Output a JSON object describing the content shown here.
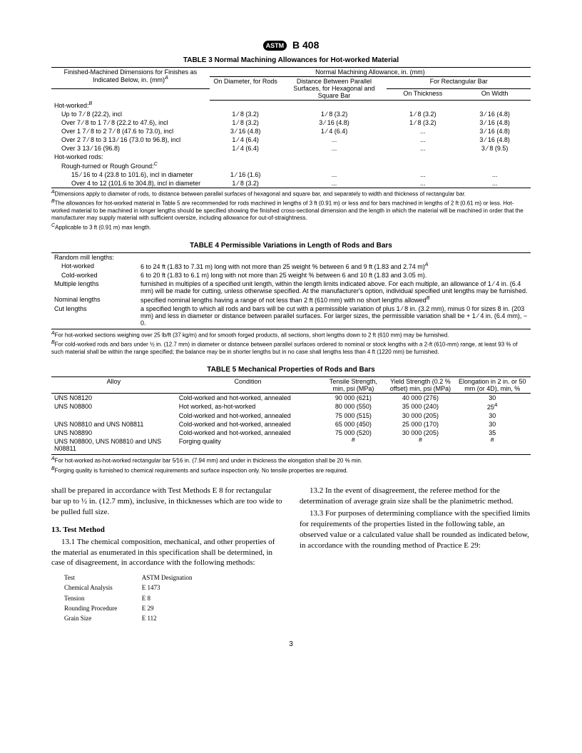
{
  "header": {
    "logo_text": "ASTM",
    "spec": "B 408"
  },
  "table3": {
    "title": "TABLE 3  Normal Machining Allowances for Hot-worked Material",
    "head_main": "Normal Machining Allowance, in. (mm)",
    "col_left": "Finished-Machined Dimensions for Finishes as Indicated Below, in. (mm)",
    "col_left_sup": "A",
    "col_diameter": "On Diameter, for Rods",
    "col_distance": "Distance Between Parallel Surfaces, for Hexagonal and Square Bar",
    "col_rect": "For Rectangular Bar",
    "col_thick": "On Thickness",
    "col_width": "On Width",
    "group1": "Hot-worked:",
    "group1_sup": "B",
    "rows1": [
      {
        "label": "Up to 7 ⁄ 8 (22.2), incl",
        "d": "1 ⁄ 8 (3.2)",
        "s": "1 ⁄ 8 (3.2)",
        "t": "1 ⁄ 8 (3.2)",
        "w": "3 ⁄ 16 (4.8)"
      },
      {
        "label": "Over 7 ⁄ 8 to 1 7 ⁄ 8 (22.2 to 47.6), incl",
        "d": "1 ⁄ 8 (3.2)",
        "s": "3 ⁄ 16 (4.8)",
        "t": "1 ⁄ 8 (3.2)",
        "w": "3 ⁄ 16 (4.8)"
      },
      {
        "label": "Over 1 7 ⁄ 8 to 2 7 ⁄ 8 (47.6 to 73.0), incl",
        "d": "3 ⁄ 16 (4.8)",
        "s": "1 ⁄ 4 (6.4)",
        "t": "...",
        "w": "3 ⁄ 16 (4.8)"
      },
      {
        "label": "Over 2 7 ⁄ 8 to 3 13 ⁄ 16 (73.0 to 96.8), incl",
        "d": "1 ⁄ 4 (6.4)",
        "s": "...",
        "t": "...",
        "w": "3 ⁄ 16 (4.8)"
      },
      {
        "label": "Over 3 13 ⁄ 16 (96.8)",
        "d": "1 ⁄ 4 (6.4)",
        "s": "...",
        "t": "...",
        "w": "3 ⁄ 8 (9.5)"
      }
    ],
    "group2a": "Hot-worked rods:",
    "group2b": "Rough-turned or Rough Ground:",
    "group2b_sup": "C",
    "rows2": [
      {
        "label": "15 ⁄ 16 to 4 (23.8 to 101.6), incl in diameter",
        "d": "1 ⁄ 16 (1.6)",
        "s": "...",
        "t": "...",
        "w": "..."
      },
      {
        "label": "Over 4 to 12 (101.6 to 304.8), incl in diameter",
        "d": "1 ⁄ 8 (3.2)",
        "s": "...",
        "t": "...",
        "w": "..."
      }
    ],
    "foot_a": "Dimensions apply to diameter of rods, to distance between parallel surfaces of hexagonal and square bar, and separately to width and thickness of rectangular bar.",
    "foot_b": "The allowances for hot-worked material in Table 5 are recommended for rods machined in lengths of 3 ft (0.91 m) or less and for bars machined in lengths of 2 ft (0.61 m) or less. Hot-worked material to be machined in longer lengths should be specified showing the finished cross-sectional dimension and the length in which the material will be machined in order that the manufacturer may supply material with sufficient oversize, including allowance for out-of-straightness.",
    "foot_c": "Applicable to 3 ft (0.91 m) max length."
  },
  "table4": {
    "title": "TABLE 4  Permissible Variations in Length of Rods and Bars",
    "group": "Random mill lengths:",
    "rows": [
      {
        "label": "Hot-worked",
        "text": "6 to 24 ft (1.83 to 7.31 m) long with not more than 25 weight % between 6 and 9 ft (1.83 and 2.74 m)",
        "sup": "A"
      },
      {
        "label": "Cold-worked",
        "text": "6 to 20 ft (1.83 to 6.1 m) long with not more than 25 weight % between 6 and 10 ft (1.83 and 3.05 m).",
        "sup": ""
      },
      {
        "label": "Multiple lengths",
        "text": "furnished in multiples of a specified unit length, within the length limits indicated above. For each multiple, an allowance of 1 ⁄ 4 in. (6.4 mm) will be made for cutting, unless otherwise specified. At the manufacturer's option, individual specified unit lengths may be furnished.",
        "sup": ""
      },
      {
        "label": "Nominal lengths",
        "text": "specified nominal lengths having a range of not less than 2 ft (610 mm) with no short lengths allowed",
        "sup": "B"
      },
      {
        "label": "Cut lengths",
        "text": "a specified length to which all rods and bars will be cut with a permissible variation of plus 1 ⁄ 8 in. (3.2 mm), minus 0 for sizes 8 in. (203 mm) and less in diameter or distance between parallel surfaces. For larger sizes, the permissible variation shall be + 1 ⁄ 4 in. (6.4 mm), − 0.",
        "sup": ""
      }
    ],
    "foot_a": "For hot-worked sections weighing over 25 lb/ft (37 kg/m) and for smooth forged products, all sections, short lengths down to 2 ft (610 mm) may be furnished.",
    "foot_b": "For cold-worked rods and bars under ½ in. (12.7 mm) in diameter or distance between parallel surfaces ordered to nominal or stock lengths with a 2-ft (610-mm) range, at least 93 % of such material shall be within the range specified; the balance may be in shorter lengths but in no case shall lengths less than 4 ft (1220 mm) be furnished."
  },
  "table5": {
    "title": "TABLE 5  Mechanical Properties of Rods and Bars",
    "h_alloy": "Alloy",
    "h_cond": "Condition",
    "h_tensile": "Tensile Strength, min, psi (MPa)",
    "h_yield": "Yield Strength (0.2 % offset) min, psi (MPa)",
    "h_elong": "Elongation in 2 in. or 50 mm (or 4D), min, %",
    "rows": [
      {
        "alloy": "UNS N08120",
        "cond": "Cold-worked and hot-worked, annealed",
        "ts": "90 000 (621)",
        "ys": "40 000 (276)",
        "el": "30",
        "el_sup": ""
      },
      {
        "alloy": "UNS N08800",
        "cond": "Hot worked, as-hot-worked",
        "ts": "80 000 (550)",
        "ys": "35 000 (240)",
        "el": "25",
        "el_sup": "A"
      },
      {
        "alloy": "",
        "cond": "Cold-worked and hot-worked, annealed",
        "ts": "75 000 (515)",
        "ys": "30 000 (205)",
        "el": "30",
        "el_sup": ""
      },
      {
        "alloy": "UNS N08810 and UNS N08811",
        "cond": "Cold-worked and hot-worked, annealed",
        "ts": "65 000 (450)",
        "ys": "25 000 (170)",
        "el": "30",
        "el_sup": ""
      },
      {
        "alloy": "UNS N08890",
        "cond": "Cold-worked and hot-worked, annealed",
        "ts": "75 000 (520)",
        "ys": "30 000 (205)",
        "el": "35",
        "el_sup": ""
      },
      {
        "alloy": "UNS N08800, UNS N08810 and UNS N08811",
        "cond": "Forging quality",
        "ts": "",
        "ys": "",
        "el": "",
        "ts_sup": "B",
        "ys_sup": "B",
        "el_sup": "B"
      }
    ],
    "foot_a": "For hot-worked as-hot-worked rectangular bar 5⁄16 in. (7.94 mm) and under in thickness the elongation shall be 20 % min.",
    "foot_b": "Forging quality is furnished to chemical requirements and surface inspection only. No tensile properties are required."
  },
  "body": {
    "leftpara1": "shall be prepared in accordance with Test Methods E 8 for rectangular bar up to ½ in. (12.7 mm), inclusive, in thicknesses which are too wide to be pulled full size.",
    "sec13": "13. Test Method",
    "p131": "13.1 The chemical composition, mechanical, and other properties of the material as enumerated in this specification shall be determined, in case of disagreement, in accordance with the following methods:",
    "mini_h1": "Test",
    "mini_h2": "ASTM Designation",
    "mini_rows": [
      {
        "t": "Chemical Analysis",
        "d": "E 1473"
      },
      {
        "t": "Tension",
        "d": "E 8"
      },
      {
        "t": "Rounding Procedure",
        "d": "E 29"
      },
      {
        "t": "Grain Size",
        "d": "E 112"
      }
    ],
    "p132": "13.2 In the event of disagreement, the referee method for the determination of average grain size shall be the planimetric method.",
    "p133": "13.3 For purposes of determining compliance with the specified limits for requirements of the properties listed in the following table, an observed value or a calculated value shall be rounded as indicated below, in accordance with the rounding method of Practice E 29:"
  },
  "pagenum": "3"
}
